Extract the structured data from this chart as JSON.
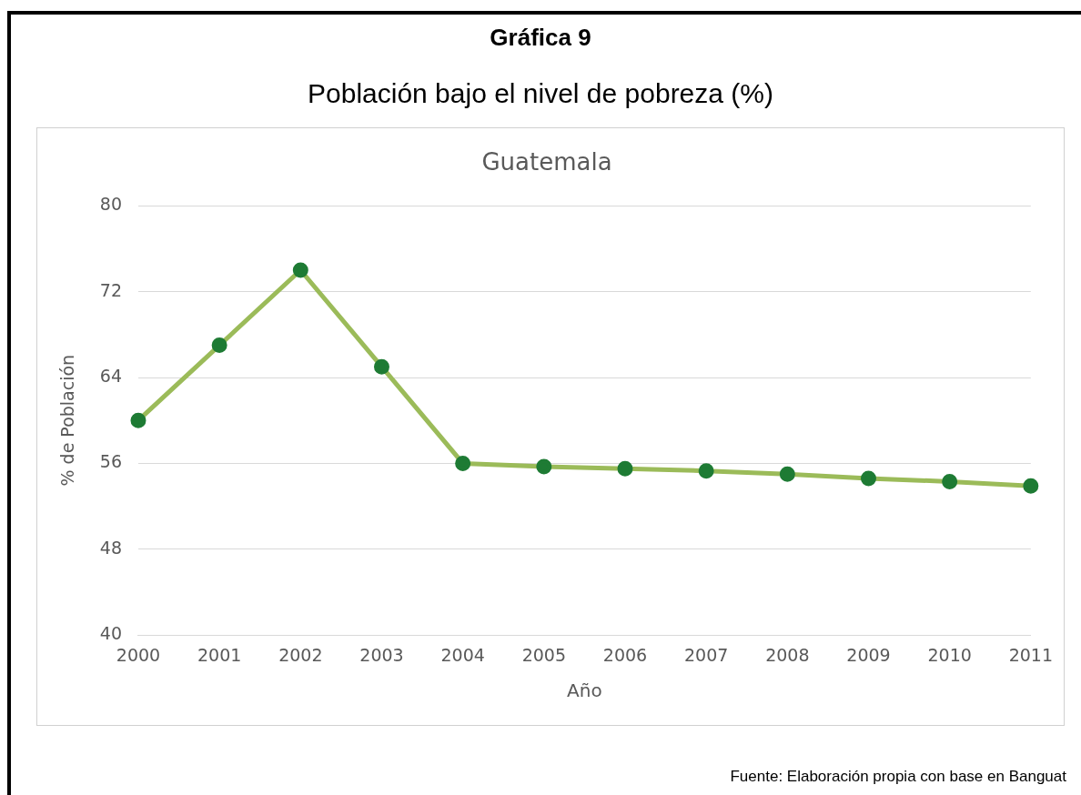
{
  "chart_data": {
    "type": "line",
    "title": "Población bajo el nivel de pobreza (%)",
    "subtitle": "Guatemala",
    "annotations": [
      "Gráfica 9",
      "Fuente: Elaboración propia con base en Banguat"
    ],
    "xlabel": "Año",
    "ylabel": "% de Población",
    "categories": [
      "2000",
      "2001",
      "2002",
      "2003",
      "2004",
      "2005",
      "2006",
      "2007",
      "2008",
      "2009",
      "2010",
      "2011"
    ],
    "series": [
      {
        "color": "#9bbb59",
        "values": [
          60.0,
          67.0,
          74.0,
          65.0,
          56.0,
          55.7,
          55.5,
          55.3,
          55.0,
          54.6,
          54.3,
          53.9
        ]
      }
    ],
    "ylim": [
      40,
      80
    ],
    "yticks": [
      40,
      48,
      56,
      64,
      72,
      80
    ],
    "grid": "y",
    "legend": false,
    "marker": "circle",
    "line_style": "solid"
  }
}
